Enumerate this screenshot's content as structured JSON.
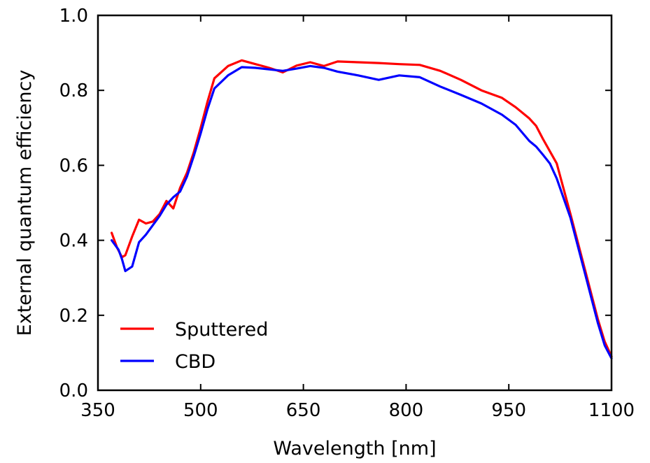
{
  "chart_data": {
    "type": "line",
    "xlabel": "Wavelength [nm]",
    "ylabel": "External quantum efficiency",
    "xlim": [
      350,
      1100
    ],
    "ylim": [
      0.0,
      1.0
    ],
    "xticks": [
      350,
      500,
      650,
      800,
      950,
      1100
    ],
    "xtick_labels": [
      "350",
      "500",
      "650",
      "800",
      "950",
      "1100"
    ],
    "yticks": [
      0.0,
      0.2,
      0.4,
      0.6,
      0.8,
      1.0
    ],
    "ytick_labels": [
      "0.0",
      "0.2",
      "0.4",
      "0.6",
      "0.8",
      "1.0"
    ],
    "grid": false,
    "legend_position": "lower-left",
    "series": [
      {
        "name": "Sputtered",
        "color": "#ff0000",
        "x": [
          370,
          378,
          385,
          390,
          400,
          410,
          420,
          430,
          440,
          450,
          460,
          470,
          480,
          490,
          500,
          510,
          520,
          540,
          560,
          580,
          600,
          620,
          640,
          660,
          680,
          700,
          730,
          760,
          790,
          820,
          850,
          880,
          910,
          940,
          960,
          980,
          990,
          1000,
          1020,
          1040,
          1060,
          1080,
          1090,
          1100
        ],
        "y": [
          0.42,
          0.38,
          0.355,
          0.36,
          0.41,
          0.455,
          0.445,
          0.45,
          0.47,
          0.505,
          0.485,
          0.54,
          0.58,
          0.635,
          0.7,
          0.77,
          0.832,
          0.865,
          0.88,
          0.87,
          0.86,
          0.848,
          0.866,
          0.875,
          0.865,
          0.877,
          0.875,
          0.873,
          0.87,
          0.868,
          0.852,
          0.828,
          0.8,
          0.78,
          0.755,
          0.725,
          0.705,
          0.67,
          0.605,
          0.47,
          0.33,
          0.19,
          0.13,
          0.09
        ]
      },
      {
        "name": "CBD",
        "color": "#0000ff",
        "x": [
          370,
          380,
          385,
          390,
          400,
          410,
          420,
          430,
          440,
          450,
          460,
          470,
          480,
          490,
          500,
          510,
          520,
          540,
          560,
          580,
          600,
          620,
          640,
          660,
          680,
          700,
          730,
          760,
          790,
          820,
          850,
          880,
          910,
          940,
          960,
          980,
          990,
          1000,
          1010,
          1020,
          1040,
          1060,
          1080,
          1090,
          1100
        ],
        "y": [
          0.4,
          0.375,
          0.35,
          0.318,
          0.33,
          0.395,
          0.415,
          0.44,
          0.465,
          0.495,
          0.515,
          0.53,
          0.57,
          0.625,
          0.685,
          0.75,
          0.805,
          0.84,
          0.862,
          0.86,
          0.856,
          0.852,
          0.858,
          0.865,
          0.86,
          0.85,
          0.84,
          0.828,
          0.84,
          0.835,
          0.81,
          0.788,
          0.765,
          0.735,
          0.708,
          0.665,
          0.65,
          0.628,
          0.605,
          0.565,
          0.46,
          0.32,
          0.18,
          0.12,
          0.085
        ]
      }
    ]
  }
}
